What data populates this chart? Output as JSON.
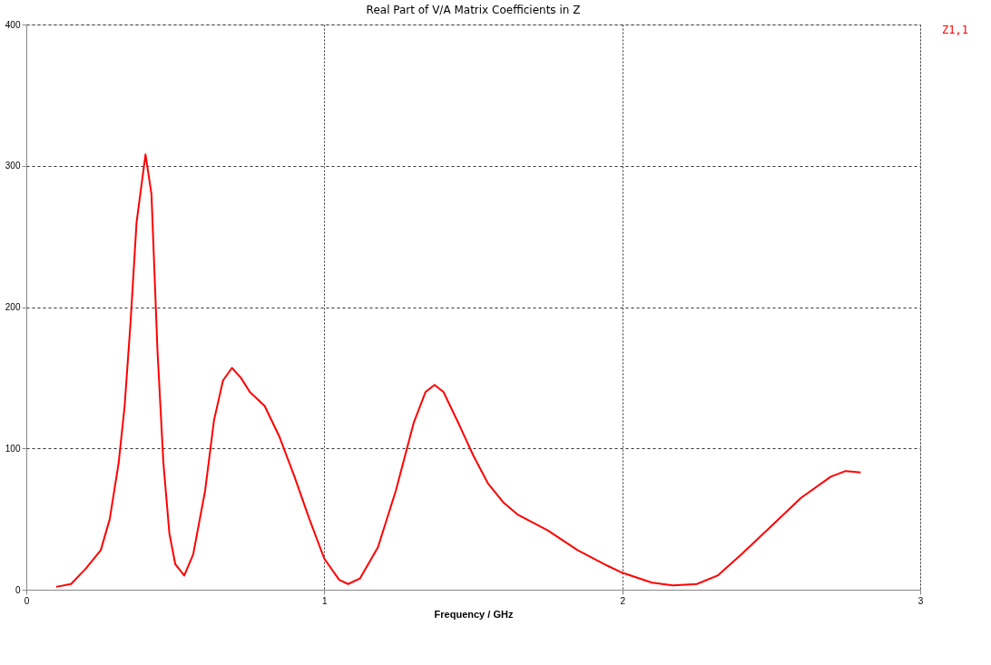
{
  "chart_data": {
    "type": "line",
    "title": "Real Part of V/A Matrix Coefficients in Z",
    "xlabel": "Frequency / GHz",
    "xlim": [
      0,
      3
    ],
    "xticks": [
      0,
      1,
      2,
      3
    ],
    "ylim": [
      0,
      400
    ],
    "yticks": [
      0,
      100,
      200,
      300,
      400
    ],
    "grid": true,
    "legend": "top right",
    "line_style": "solid",
    "series": [
      {
        "name": "Z1,1",
        "color": "#ff0000",
        "x": [
          0.1,
          0.15,
          0.2,
          0.25,
          0.28,
          0.31,
          0.33,
          0.35,
          0.37,
          0.4,
          0.42,
          0.44,
          0.46,
          0.48,
          0.5,
          0.53,
          0.56,
          0.6,
          0.63,
          0.66,
          0.69,
          0.72,
          0.75,
          0.8,
          0.85,
          0.9,
          0.95,
          1.0,
          1.05,
          1.08,
          1.12,
          1.18,
          1.24,
          1.3,
          1.34,
          1.37,
          1.4,
          1.45,
          1.5,
          1.55,
          1.6,
          1.65,
          1.75,
          1.85,
          1.95,
          2.0,
          2.1,
          2.17,
          2.25,
          2.32,
          2.4,
          2.5,
          2.6,
          2.7,
          2.75,
          2.8
        ],
        "values": [
          2,
          4,
          15,
          28,
          50,
          90,
          130,
          190,
          260,
          308,
          280,
          170,
          90,
          40,
          18,
          10,
          25,
          70,
          120,
          148,
          157,
          150,
          140,
          130,
          108,
          80,
          50,
          22,
          7,
          4,
          8,
          30,
          70,
          118,
          140,
          145,
          140,
          118,
          95,
          75,
          62,
          53,
          42,
          28,
          17,
          12,
          5,
          3,
          4,
          10,
          25,
          45,
          65,
          80,
          84,
          83
        ]
      }
    ]
  }
}
